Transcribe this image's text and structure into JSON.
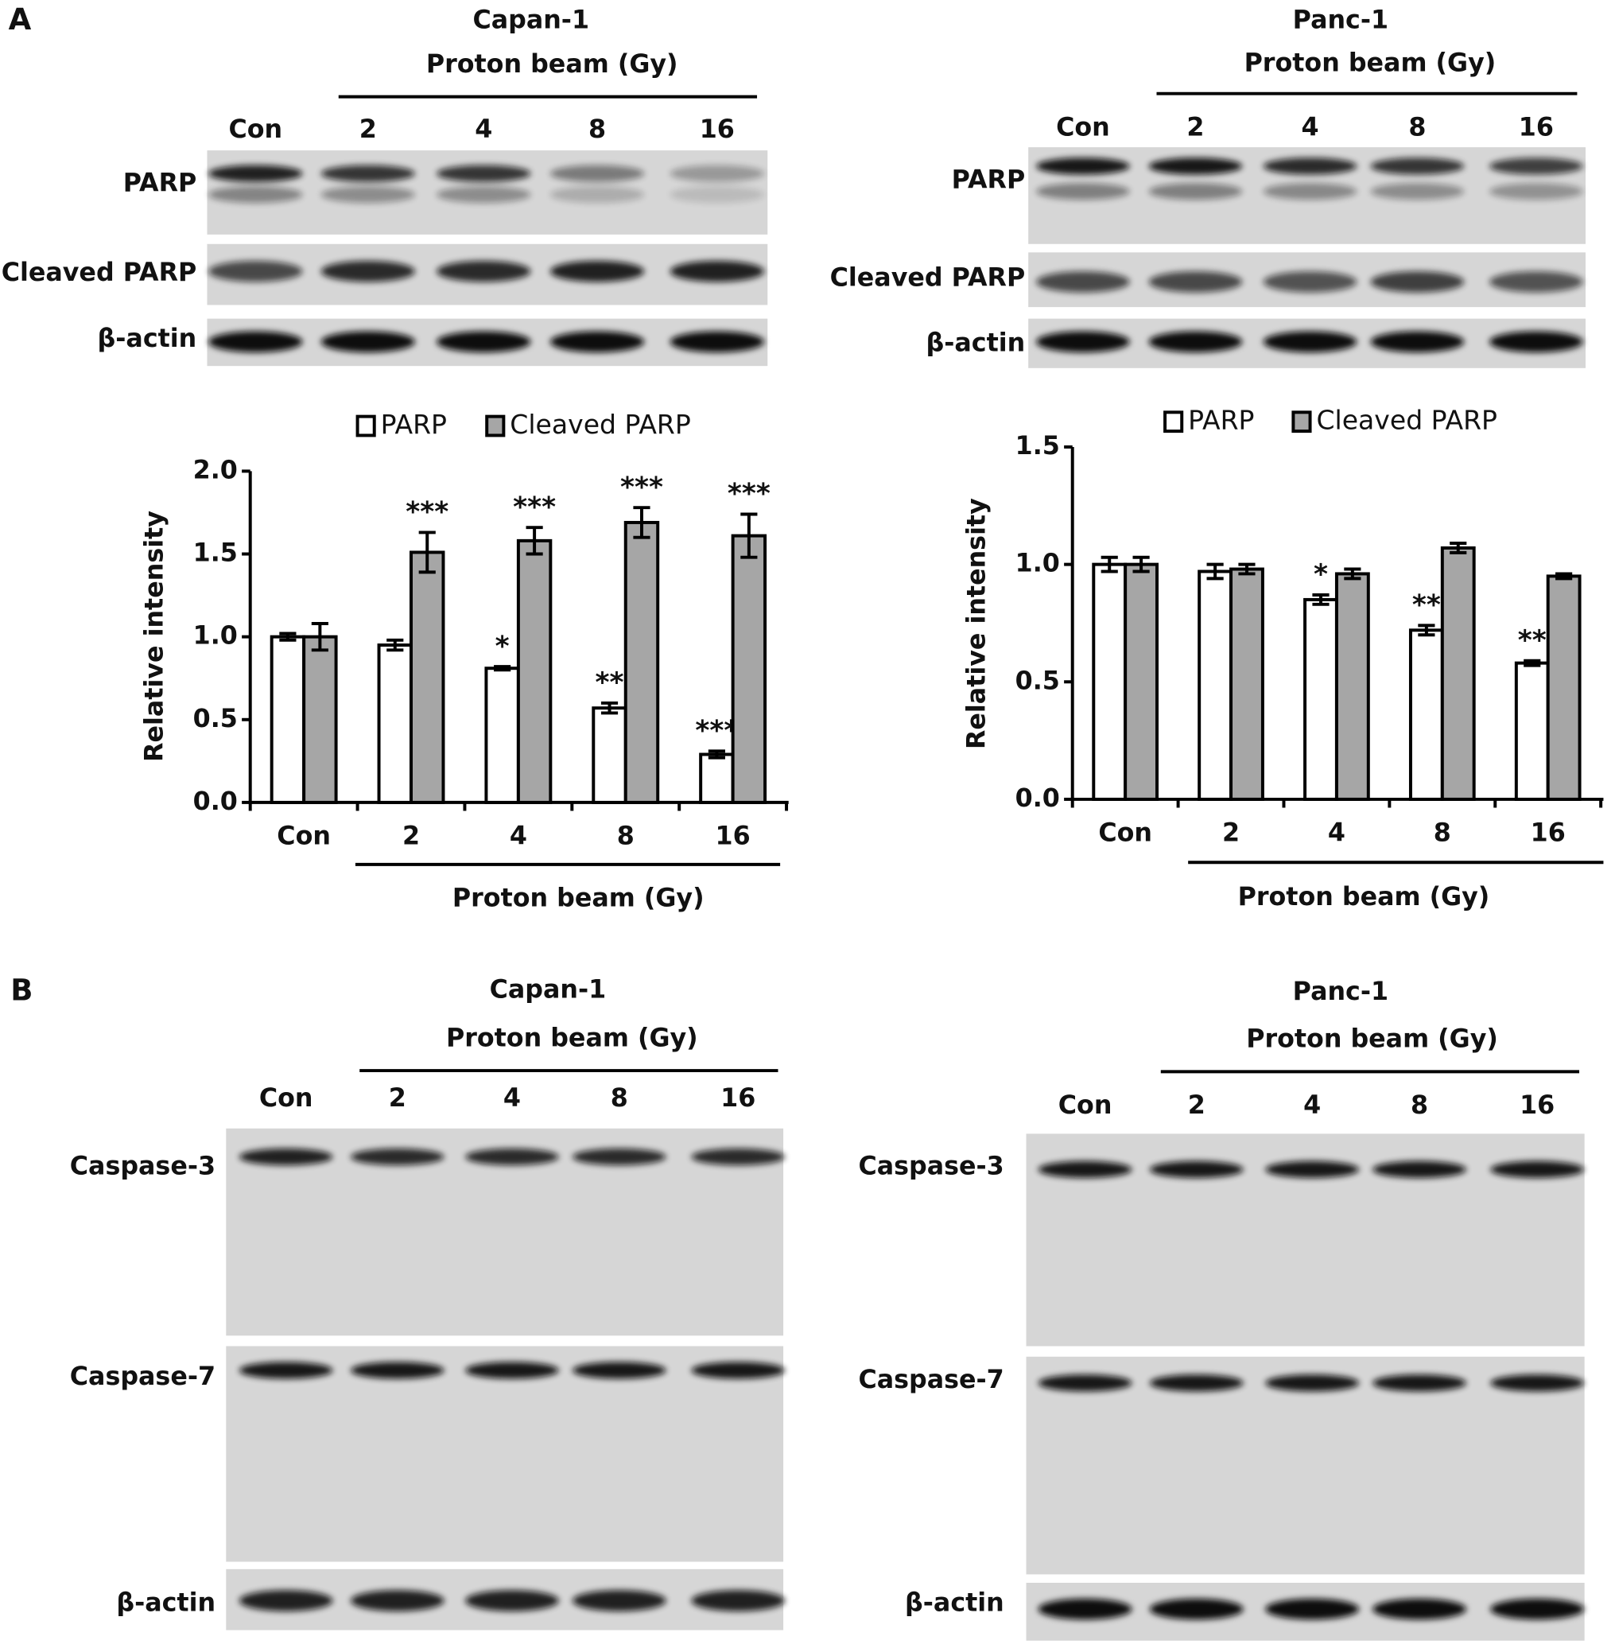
{
  "panel_labels": [
    "A",
    "B"
  ],
  "blots": [
    {
      "title": "Capan-1",
      "subtitle": "Proton beam (Gy)",
      "lanes": [
        "Con",
        "2",
        "4",
        "8",
        "16"
      ],
      "rows": [
        "PARP",
        "Cleaved PARP",
        "β-actin"
      ]
    },
    {
      "title": "Panc-1",
      "subtitle": "Proton beam (Gy)",
      "lanes": [
        "Con",
        "2",
        "4",
        "8",
        "16"
      ],
      "rows": [
        "PARP",
        "Cleaved PARP",
        "β-actin"
      ]
    },
    {
      "title": "Capan-1",
      "subtitle": "Proton beam (Gy)",
      "lanes": [
        "Con",
        "2",
        "4",
        "8",
        "16"
      ],
      "rows": [
        "Caspase-3",
        "Caspase-7",
        "β-actin"
      ]
    },
    {
      "title": "Panc-1",
      "subtitle": "Proton beam (Gy)",
      "lanes": [
        "Con",
        "2",
        "4",
        "8",
        "16"
      ],
      "rows": [
        "Caspase-3",
        "Caspase-7",
        "β-actin"
      ]
    }
  ],
  "chart_data": [
    {
      "type": "bar",
      "legend": "top",
      "ylabel": "Relative intensity",
      "xlabel": "Proton beam (Gy)",
      "categories": [
        "Con",
        "2",
        "4",
        "8",
        "16"
      ],
      "series": [
        {
          "name": "PARP",
          "color": "#ffffff",
          "values": [
            1.0,
            0.95,
            0.81,
            0.57,
            0.29
          ],
          "errors": [
            0.02,
            0.03,
            0.01,
            0.03,
            0.02
          ],
          "annotations": [
            null,
            null,
            "*",
            "**",
            "***"
          ]
        },
        {
          "name": "Cleaved PARP",
          "color": "#a6a6a6",
          "values": [
            1.0,
            1.51,
            1.58,
            1.69,
            1.61
          ],
          "errors": [
            0.08,
            0.12,
            0.08,
            0.09,
            0.13
          ],
          "annotations": [
            null,
            "***",
            "***",
            "***",
            "***"
          ]
        }
      ],
      "ylim": [
        0,
        2
      ],
      "yticks": [
        {
          "value": 0,
          "label": "0.0"
        },
        0.5,
        {
          "value": 1,
          "label": "1.0"
        },
        1.5,
        {
          "value": 2,
          "label": "2.0"
        }
      ]
    },
    {
      "type": "bar",
      "legend": "top",
      "ylabel": "Relative intensity",
      "xlabel": "Proton beam (Gy)",
      "categories": [
        "Con",
        "2",
        "4",
        "8",
        "16"
      ],
      "series": [
        {
          "name": "PARP",
          "color": "#ffffff",
          "values": [
            1.0,
            0.97,
            0.85,
            0.72,
            0.58
          ],
          "errors": [
            0.03,
            0.03,
            0.02,
            0.02,
            0.01
          ],
          "annotations": [
            null,
            null,
            "*",
            "**",
            "**"
          ]
        },
        {
          "name": "Cleaved PARP",
          "color": "#a6a6a6",
          "values": [
            1.0,
            0.98,
            0.96,
            1.07,
            0.95
          ],
          "errors": [
            0.03,
            0.02,
            0.02,
            0.02,
            0.01
          ],
          "annotations": [
            null,
            null,
            null,
            null,
            null
          ]
        }
      ],
      "ylim": [
        0,
        1.5
      ],
      "yticks": [
        {
          "value": 0,
          "label": "0.0"
        },
        0.5,
        {
          "value": 1,
          "label": "1.0"
        },
        1.5
      ]
    }
  ]
}
